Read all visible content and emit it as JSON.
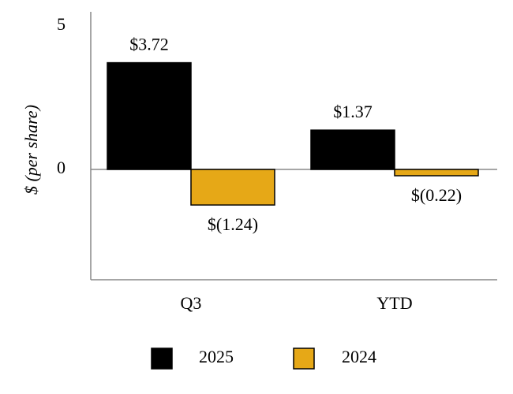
{
  "chart_data": {
    "type": "bar",
    "categories": [
      "Q3",
      "YTD"
    ],
    "series": [
      {
        "name": "2025",
        "values": [
          3.72,
          1.37
        ],
        "labels": [
          "$3.72",
          "$1.37"
        ],
        "color": "#000000"
      },
      {
        "name": "2024",
        "values": [
          -1.24,
          -0.22
        ],
        "labels": [
          "$(1.24)",
          "$(0.22)"
        ],
        "color": "#E6A817"
      }
    ],
    "ylabel": "$ (per share)",
    "yticks": [
      "5",
      "0"
    ],
    "ylim": [
      -4,
      5
    ],
    "legend": "bottom",
    "grid": false
  }
}
